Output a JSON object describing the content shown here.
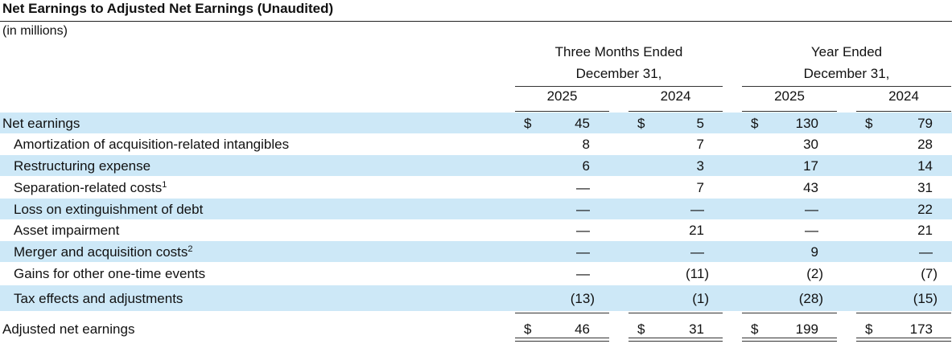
{
  "title": "Net Earnings to Adjusted Net Earnings (Unaudited)",
  "subtitle": "(in millions)",
  "headers": {
    "group1": {
      "line1": "Three Months Ended",
      "line2": "December 31,"
    },
    "group2": {
      "line1": "Year Ended",
      "line2": "December 31,"
    },
    "years": [
      "2025",
      "2024",
      "2025",
      "2024"
    ]
  },
  "rows": [
    {
      "label": "Net earnings",
      "footnote": "",
      "values": [
        "45",
        "5",
        "130",
        "79"
      ]
    },
    {
      "label": "Amortization of acquisition-related intangibles",
      "footnote": "",
      "values": [
        "8",
        "7",
        "30",
        "28"
      ]
    },
    {
      "label": "Restructuring expense",
      "footnote": "",
      "values": [
        "6",
        "3",
        "17",
        "14"
      ]
    },
    {
      "label": "Separation-related costs",
      "footnote": "1",
      "values": [
        "—",
        "7",
        "43",
        "31"
      ]
    },
    {
      "label": "Loss on extinguishment of debt",
      "footnote": "",
      "values": [
        "—",
        "—",
        "—",
        "22"
      ]
    },
    {
      "label": "Asset impairment",
      "footnote": "",
      "values": [
        "—",
        "21",
        "—",
        "21"
      ]
    },
    {
      "label": "Merger and acquisition costs",
      "footnote": "2",
      "values": [
        "—",
        "—",
        "9",
        "—"
      ]
    },
    {
      "label": "Gains for other one-time events",
      "footnote": "",
      "values": [
        "—",
        "(11)",
        "(2)",
        "(7)"
      ]
    },
    {
      "label": "Tax effects and adjustments",
      "footnote": "",
      "values": [
        "(13)",
        "(1)",
        "(28)",
        "(15)"
      ]
    },
    {
      "label": "Adjusted net earnings",
      "footnote": "",
      "values": [
        "46",
        "31",
        "199",
        "173"
      ]
    }
  ],
  "currency_symbol": "$"
}
